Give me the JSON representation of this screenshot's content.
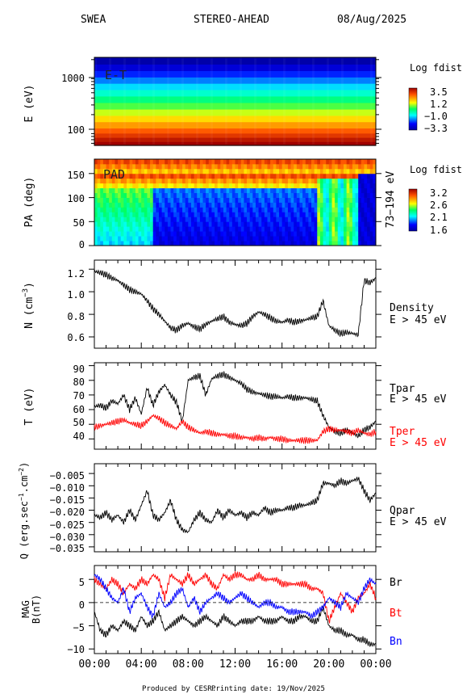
{
  "header": {
    "instrument": "SWEA",
    "spacecraft": "STEREO-AHEAD",
    "date": "08/Aug/2025"
  },
  "footer": {
    "produced": "Produced by CESR.",
    "printing": "Printing date: 19/Nov/2025"
  },
  "x_ticks": [
    "00:00",
    "04:00",
    "08:00",
    "12:00",
    "16:00",
    "20:00",
    "00:00"
  ],
  "colors": {
    "black": "#000000",
    "red": "#ff0000",
    "blue": "#0000ff"
  },
  "chart_data": [
    {
      "type": "heatmap",
      "name": "E-T",
      "panel_label": "E-T",
      "ylabel": "E (eV)",
      "yscale": "log",
      "y_tick_labels": [
        "1000",
        "100"
      ],
      "y_ticks": [
        1000,
        100
      ],
      "ylim": [
        55,
        2200
      ],
      "xlim_hours": [
        0,
        24
      ],
      "colorbar": {
        "title": "Log fdist",
        "labels": [
          "3.5",
          "1.2",
          "−1.0",
          "−3.3"
        ],
        "range": [
          -3.3,
          3.5
        ]
      },
      "energy_bands_eV": [
        60,
        70,
        85,
        100,
        130,
        170,
        220,
        290,
        380,
        500,
        650,
        850,
        1100,
        1450,
        1900
      ],
      "band_values": [
        3.5,
        3.2,
        2.8,
        2.4,
        1.9,
        1.4,
        0.9,
        0.4,
        -0.1,
        -0.6,
        -1.1,
        -1.6,
        -2.1,
        -2.7,
        -3.2
      ]
    },
    {
      "type": "heatmap",
      "name": "PAD",
      "panel_label": "PAD",
      "ylabel": "PA (deg)",
      "right_label": "73−194 eV",
      "y_tick_labels": [
        "150",
        "100",
        "50",
        "0"
      ],
      "y_ticks": [
        150,
        100,
        50,
        0
      ],
      "ylim": [
        0,
        180
      ],
      "xlim_hours": [
        0,
        24
      ],
      "colorbar": {
        "title": "Log fdist",
        "labels": [
          "3.2",
          "2.6",
          "2.1",
          "1.6"
        ],
        "range": [
          1.6,
          3.2
        ]
      }
    },
    {
      "type": "line",
      "name": "Density",
      "ylabel": "N (cm⁻³)",
      "ylabel_main": "N (cm",
      "ylabel_exp": "−3",
      "y_tick_labels": [
        "1.2",
        "1.0",
        "0.8",
        "0.6"
      ],
      "y_ticks": [
        1.2,
        1.0,
        0.8,
        0.6
      ],
      "ylim": [
        0.5,
        1.28
      ],
      "right_labels": [
        "Density",
        "E > 45 eV"
      ],
      "x_hours": [
        0,
        0.5,
        1,
        1.5,
        2,
        2.5,
        3,
        3.5,
        4,
        4.5,
        5,
        5.5,
        6,
        6.5,
        7,
        7.5,
        8,
        8.5,
        9,
        9.5,
        10,
        10.5,
        11,
        11.5,
        12,
        12.5,
        13,
        13.5,
        14,
        14.5,
        15,
        15.5,
        16,
        16.5,
        17,
        17.5,
        18,
        18.5,
        19,
        19.5,
        20,
        20.5,
        21,
        21.5,
        22,
        22.5,
        23,
        23.5,
        24
      ],
      "series": [
        {
          "values": [
            1.18,
            1.17,
            1.15,
            1.12,
            1.1,
            1.06,
            1.02,
            1.0,
            0.98,
            0.92,
            0.85,
            0.8,
            0.74,
            0.68,
            0.66,
            0.7,
            0.72,
            0.69,
            0.67,
            0.71,
            0.74,
            0.76,
            0.78,
            0.73,
            0.71,
            0.7,
            0.72,
            0.78,
            0.82,
            0.8,
            0.77,
            0.74,
            0.73,
            0.75,
            0.73,
            0.74,
            0.75,
            0.77,
            0.78,
            0.92,
            0.7,
            0.66,
            0.63,
            0.64,
            0.63,
            0.62,
            1.1,
            1.08,
            1.12
          ],
          "color": "#000000"
        }
      ]
    },
    {
      "type": "line",
      "name": "Temperature",
      "ylabel": "T (eV)",
      "y_tick_labels": [
        "90",
        "80",
        "70",
        "60",
        "50",
        "40"
      ],
      "y_ticks": [
        90,
        80,
        70,
        60,
        50,
        40
      ],
      "ylim": [
        33,
        92
      ],
      "right_labels": [
        "Tpar",
        "E > 45 eV",
        "Tper",
        "E > 45 eV"
      ],
      "x_hours": [
        0,
        0.5,
        1,
        1.5,
        2,
        2.5,
        3,
        3.5,
        4,
        4.5,
        5,
        5.5,
        6,
        6.5,
        7,
        7.5,
        8,
        8.5,
        9,
        9.5,
        10,
        10.5,
        11,
        11.5,
        12,
        12.5,
        13,
        13.5,
        14,
        14.5,
        15,
        15.5,
        16,
        16.5,
        17,
        17.5,
        18,
        18.5,
        19,
        19.5,
        20,
        20.5,
        21,
        21.5,
        22,
        22.5,
        23,
        23.5,
        24
      ],
      "series": [
        {
          "name": "Tpar",
          "color": "#000000",
          "values": [
            62,
            63,
            61,
            66,
            64,
            70,
            60,
            68,
            57,
            75,
            63,
            72,
            77,
            70,
            65,
            52,
            80,
            82,
            83,
            70,
            81,
            83,
            84,
            82,
            80,
            78,
            74,
            72,
            71,
            70,
            69,
            69,
            68,
            69,
            68,
            68,
            68,
            67,
            66,
            56,
            48,
            45,
            44,
            46,
            44,
            42,
            46,
            48,
            52
          ]
        },
        {
          "name": "Tper",
          "color": "#ff0000",
          "values": [
            48,
            49,
            50,
            51,
            52,
            53,
            51,
            50,
            49,
            52,
            56,
            54,
            51,
            49,
            47,
            52,
            48,
            46,
            44,
            45,
            44,
            43,
            43,
            42,
            42,
            41,
            41,
            40,
            41,
            40,
            41,
            40,
            40,
            39,
            39,
            39,
            39,
            39,
            39,
            45,
            47,
            46,
            46,
            45,
            44,
            46,
            44,
            43,
            45
          ]
        }
      ]
    },
    {
      "type": "line",
      "name": "Heat flux",
      "ylabel": "Q (erg.sec⁻¹.cm⁻²)",
      "ylabel_main": "Q (erg.sec",
      "ylabel_exp1": "−1",
      "ylabel_mid": ".cm",
      "ylabel_exp2": "−2",
      "ylabel_end": ")",
      "y_tick_labels": [
        "−0.005",
        "−0.010",
        "−0.015",
        "−0.020",
        "−0.025",
        "−0.030",
        "−0.035"
      ],
      "y_ticks": [
        -0.005,
        -0.01,
        -0.015,
        -0.02,
        -0.025,
        -0.03,
        -0.035
      ],
      "ylim": [
        -0.037,
        -0.001
      ],
      "right_labels": [
        "Qpar",
        "E > 45 eV"
      ],
      "x_hours": [
        0,
        0.5,
        1,
        1.5,
        2,
        2.5,
        3,
        3.5,
        4,
        4.5,
        5,
        5.5,
        6,
        6.5,
        7,
        7.5,
        8,
        8.5,
        9,
        9.5,
        10,
        10.5,
        11,
        11.5,
        12,
        12.5,
        13,
        13.5,
        14,
        14.5,
        15,
        15.5,
        16,
        16.5,
        17,
        17.5,
        18,
        18.5,
        19,
        19.5,
        20,
        20.5,
        21,
        21.5,
        22,
        22.5,
        23,
        23.5,
        24
      ],
      "series": [
        {
          "color": "#000000",
          "values": [
            -0.022,
            -0.023,
            -0.021,
            -0.024,
            -0.022,
            -0.025,
            -0.02,
            -0.024,
            -0.018,
            -0.012,
            -0.022,
            -0.024,
            -0.021,
            -0.016,
            -0.024,
            -0.028,
            -0.029,
            -0.024,
            -0.021,
            -0.024,
            -0.025,
            -0.02,
            -0.023,
            -0.02,
            -0.022,
            -0.021,
            -0.023,
            -0.021,
            -0.022,
            -0.019,
            -0.021,
            -0.02,
            -0.02,
            -0.019,
            -0.019,
            -0.018,
            -0.018,
            -0.017,
            -0.016,
            -0.009,
            -0.009,
            -0.01,
            -0.008,
            -0.009,
            -0.008,
            -0.007,
            -0.012,
            -0.016,
            -0.013
          ]
        }
      ]
    },
    {
      "type": "line",
      "name": "MAG",
      "ylabel": "MAG B(nT)",
      "ylabel_top": "MAG",
      "ylabel_bottom": "B(nT)",
      "y_tick_labels": [
        "5",
        "0",
        "−5",
        "−10"
      ],
      "y_ticks": [
        5,
        0,
        -5,
        -10
      ],
      "ylim": [
        -11,
        8
      ],
      "right_labels": [
        "Br",
        "Bt",
        "Bn"
      ],
      "x_hours": [
        0,
        0.5,
        1,
        1.5,
        2,
        2.5,
        3,
        3.5,
        4,
        4.5,
        5,
        5.5,
        6,
        6.5,
        7,
        7.5,
        8,
        8.5,
        9,
        9.5,
        10,
        10.5,
        11,
        11.5,
        12,
        12.5,
        13,
        13.5,
        14,
        14.5,
        15,
        15.5,
        16,
        16.5,
        17,
        17.5,
        18,
        18.5,
        19,
        19.5,
        20,
        20.5,
        21,
        21.5,
        22,
        22.5,
        23,
        23.5,
        24
      ],
      "series": [
        {
          "name": "Br",
          "color": "#000000",
          "values": [
            -2,
            -6,
            -7,
            -5,
            -6,
            -4,
            -5,
            -6,
            -3,
            -5,
            -4,
            -2,
            -6,
            -5,
            -4,
            -3,
            -4,
            -5,
            -4,
            -3,
            -4,
            -5,
            -3,
            -4,
            -5,
            -4,
            -4,
            -4,
            -3,
            -4,
            -4,
            -4,
            -3,
            -4,
            -4,
            -3,
            -3,
            -4,
            -4,
            -1,
            -5,
            -6,
            -6,
            -7,
            -7,
            -8,
            -8,
            -9,
            -9
          ]
        },
        {
          "name": "Bt",
          "color": "#ff0000",
          "values": [
            5,
            4,
            3,
            5,
            4,
            2,
            4,
            3,
            5,
            4,
            6,
            5,
            1,
            6,
            5,
            4,
            6,
            4,
            5,
            6,
            4,
            3,
            6,
            5,
            6,
            6,
            5,
            5,
            6,
            5,
            5,
            5,
            4,
            4,
            4,
            4,
            4,
            3,
            3,
            2,
            -4,
            -1,
            2,
            0,
            -2,
            1,
            2,
            4,
            1
          ]
        },
        {
          "name": "Bn",
          "color": "#0000ff",
          "values": [
            6,
            5,
            3,
            1,
            0,
            3,
            -2,
            1,
            2,
            -1,
            -3,
            2,
            -1,
            0,
            2,
            3,
            -1,
            1,
            -2,
            0,
            1,
            2,
            1,
            0,
            1,
            2,
            1,
            0,
            -1,
            0,
            0,
            -1,
            -1,
            -2,
            -2,
            -2,
            -2,
            -3,
            -2,
            -1,
            1,
            0,
            -1,
            2,
            1,
            0,
            3,
            5,
            4
          ]
        }
      ]
    }
  ]
}
